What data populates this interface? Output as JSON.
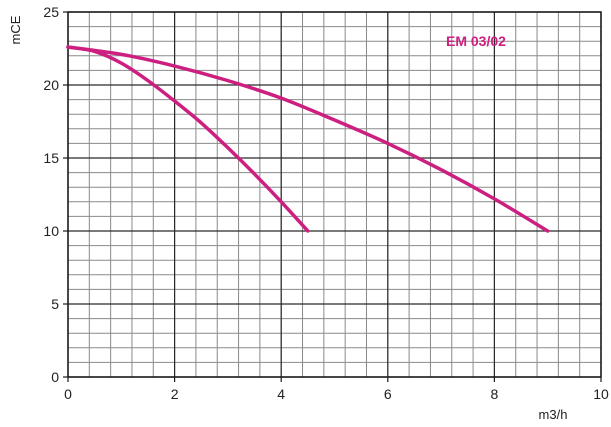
{
  "chart_data": {
    "type": "line",
    "title": "",
    "xlabel": "m3/h",
    "ylabel": "mCE",
    "xlim": [
      0,
      10
    ],
    "ylim": [
      0,
      25
    ],
    "x_major_ticks": [
      0,
      2,
      4,
      6,
      8,
      10
    ],
    "y_major_ticks": [
      0,
      5,
      10,
      15,
      20,
      25
    ],
    "x_minor_step": 0.4,
    "y_minor_step": 1,
    "grid": true,
    "series_label_text": "EM 03/02",
    "series": [
      {
        "color": "#cc1f80",
        "points": [
          [
            0,
            22.6
          ],
          [
            0.5,
            22.3
          ],
          [
            1,
            21.5
          ],
          [
            1.5,
            20.3
          ],
          [
            2,
            18.9
          ],
          [
            2.5,
            17.4
          ],
          [
            3,
            15.7
          ],
          [
            3.5,
            13.9
          ],
          [
            4,
            12.0
          ],
          [
            4.5,
            10.0
          ]
        ]
      },
      {
        "color": "#cc1f80",
        "points": [
          [
            0,
            22.6
          ],
          [
            1,
            22.1
          ],
          [
            2,
            21.3
          ],
          [
            3,
            20.3
          ],
          [
            4,
            19.1
          ],
          [
            5,
            17.6
          ],
          [
            6,
            16.0
          ],
          [
            7,
            14.2
          ],
          [
            8,
            12.2
          ],
          [
            9,
            10.0
          ]
        ]
      }
    ]
  }
}
